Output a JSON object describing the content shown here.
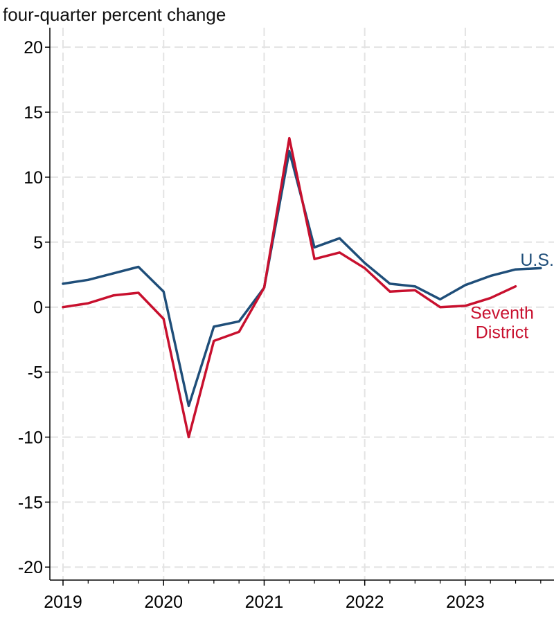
{
  "chart_data": {
    "type": "line",
    "title": "",
    "xlabel": "",
    "ylabel": "four-quarter percent change",
    "ylim": [
      -21,
      21.5
    ],
    "yticks": [
      20,
      15,
      10,
      5,
      0,
      -5,
      -10,
      -15,
      -20
    ],
    "ytick_labels": [
      "20",
      "15",
      "10",
      "5",
      "0",
      "-5",
      "-10",
      "-15",
      "-20"
    ],
    "xlim": [
      2019,
      2023.875
    ],
    "xticks": [
      2019,
      2020,
      2021,
      2022,
      2023
    ],
    "xtick_labels": [
      "2019",
      "2020",
      "2021",
      "2022",
      "2023"
    ],
    "grid": true,
    "series": [
      {
        "name": "U.S.",
        "color": "#1f4e79",
        "x": [
          2019.0,
          2019.25,
          2019.5,
          2019.75,
          2020.0,
          2020.25,
          2020.5,
          2020.75,
          2021.0,
          2021.25,
          2021.5,
          2021.75,
          2022.0,
          2022.25,
          2022.5,
          2022.75,
          2023.0,
          2023.25,
          2023.5,
          2023.75
        ],
        "values": [
          1.8,
          2.1,
          2.6,
          3.1,
          1.2,
          -7.6,
          -1.5,
          -1.1,
          1.5,
          12.0,
          4.6,
          5.3,
          3.4,
          1.8,
          1.6,
          0.6,
          1.7,
          2.4,
          2.9,
          3.0
        ]
      },
      {
        "name": "Seventh District",
        "name_lines": [
          "Seventh",
          "District"
        ],
        "color": "#c8102e",
        "x": [
          2019.0,
          2019.25,
          2019.5,
          2019.75,
          2020.0,
          2020.25,
          2020.5,
          2020.75,
          2021.0,
          2021.25,
          2021.5,
          2021.75,
          2022.0,
          2022.25,
          2022.5,
          2022.75,
          2023.0,
          2023.25,
          2023.5
        ],
        "values": [
          0.0,
          0.3,
          0.9,
          1.1,
          -0.9,
          -10.0,
          -2.6,
          -1.9,
          1.5,
          13.0,
          3.7,
          4.2,
          3.0,
          1.2,
          1.3,
          0.0,
          0.1,
          0.7,
          1.6
        ]
      }
    ]
  }
}
